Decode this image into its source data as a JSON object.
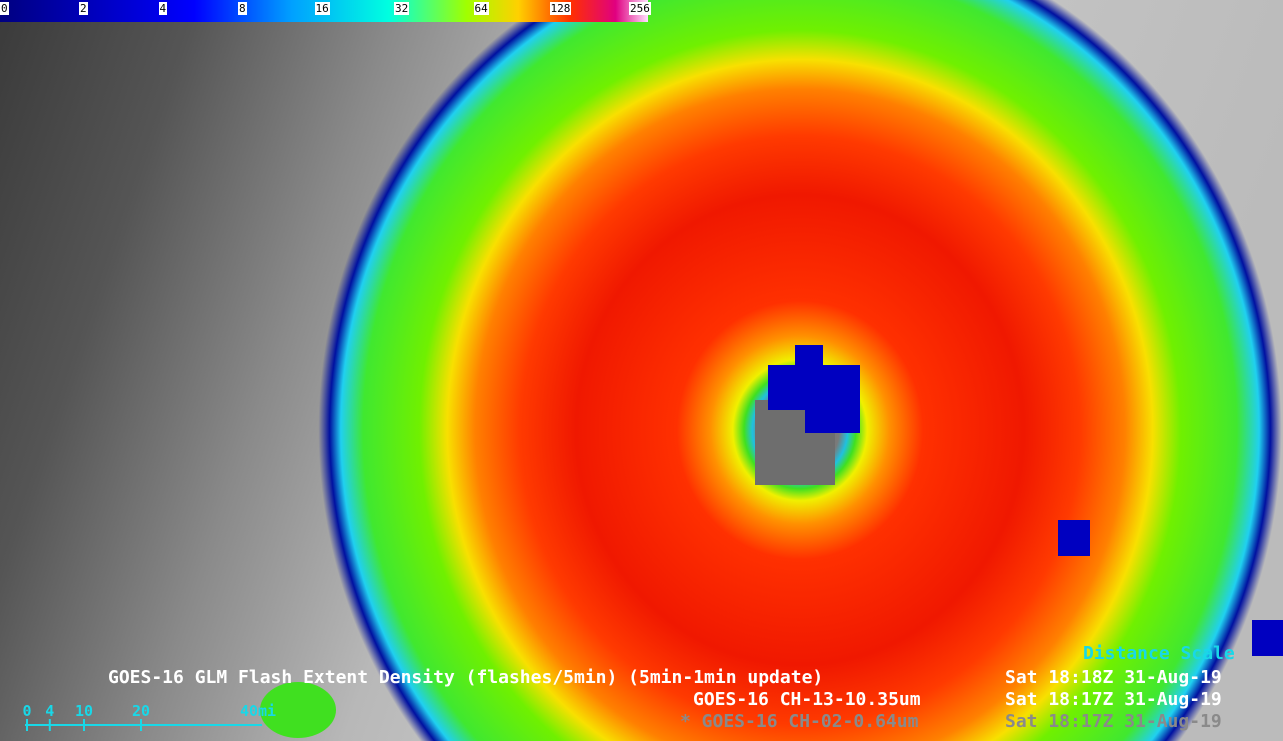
{
  "colorbar": {
    "ticks": [
      0,
      2,
      4,
      8,
      16,
      32,
      64,
      128,
      256
    ]
  },
  "distance_scale": {
    "title": "Distance Scale",
    "ticks": [
      0,
      4,
      10,
      20
    ],
    "end_label": "40mi"
  },
  "legend": {
    "rows": [
      {
        "product": "GOES-16 GLM Flash Extent Density (flashes/5min) (5min-1min update)",
        "time": "Sat 18:18Z 31-Aug-19"
      },
      {
        "product": "GOES-16 CH-13-10.35um",
        "time": "Sat 18:17Z 31-Aug-19"
      },
      {
        "product": "* GOES-16 CH-02-0.64um",
        "time": "Sat 18:17Z 31-Aug-19"
      }
    ]
  }
}
